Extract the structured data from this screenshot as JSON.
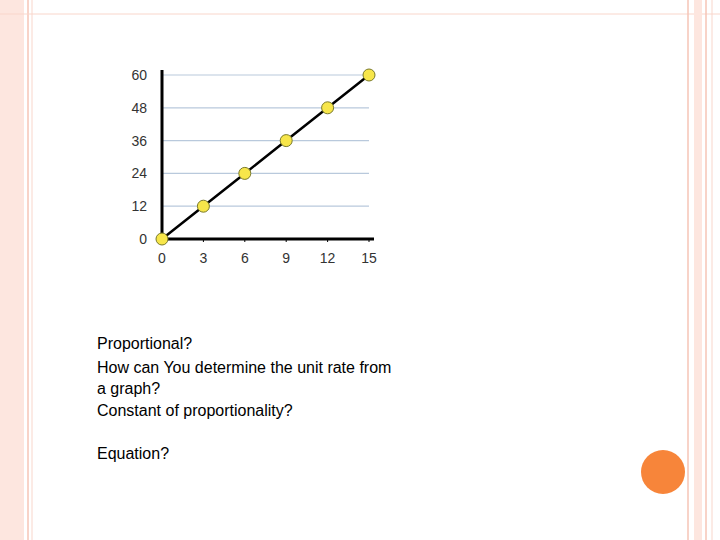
{
  "chart_data": {
    "type": "line",
    "x": [
      0,
      3,
      6,
      9,
      12,
      15
    ],
    "values": [
      0,
      12,
      24,
      36,
      48,
      60
    ],
    "color": "#000000",
    "marker": "circle",
    "xlim": [
      0,
      15
    ],
    "xticks": [
      0,
      3,
      6,
      9,
      12,
      15
    ],
    "ylim": [
      0,
      60
    ],
    "yticks": [
      0,
      12,
      24,
      36,
      48,
      60
    ],
    "grid": true
  },
  "slide_text": [
    "Proportional?",
    "How can You determine the unit rate from",
    "a graph?",
    "Constant of proportionality?",
    "Equation?"
  ]
}
